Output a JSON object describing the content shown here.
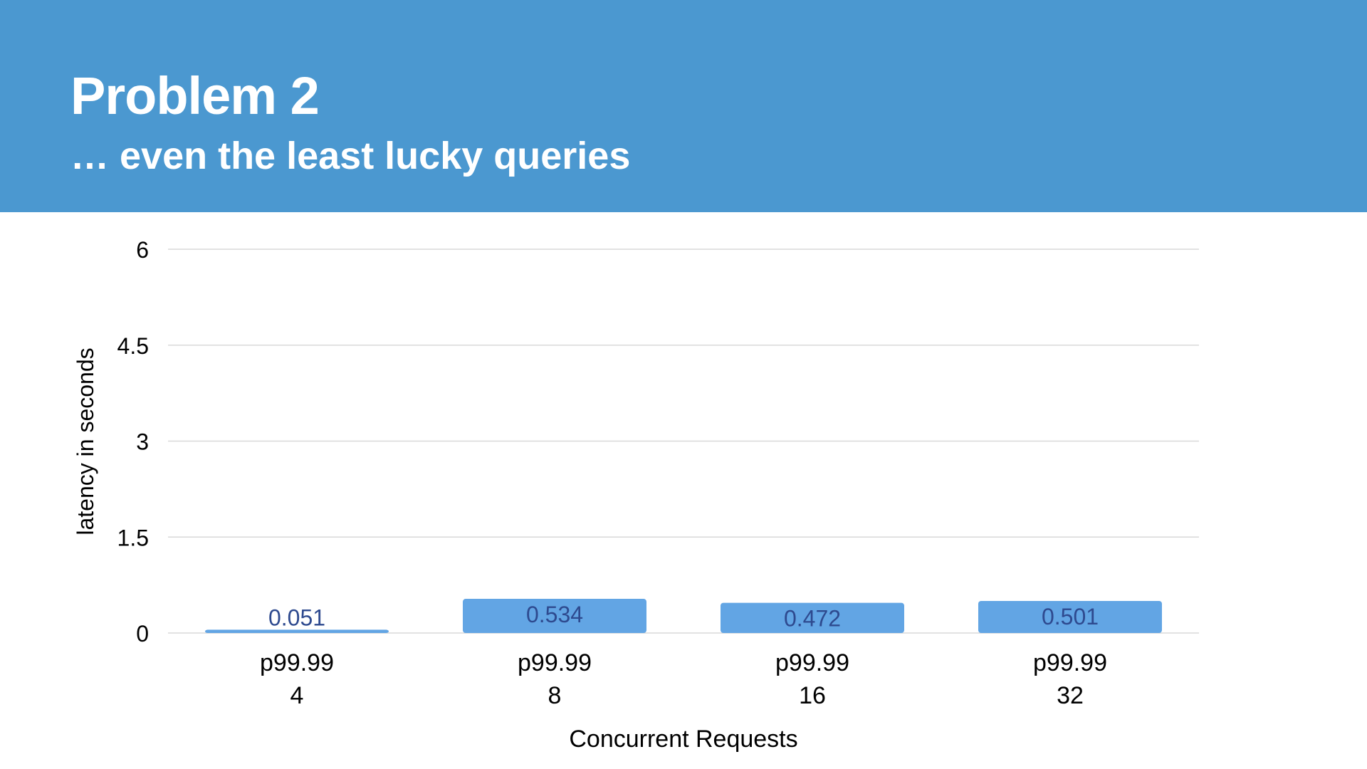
{
  "slide": {
    "title": "Problem 2",
    "subtitle": "… even the least lucky queries"
  },
  "colors": {
    "header_bg": "#4b98d0",
    "bar": "#62a5e4",
    "bar_label": "#2e4a8f",
    "grid": "#d9d9d9",
    "text": "#000000"
  },
  "chart_data": {
    "type": "bar",
    "categories": [
      [
        "p99.99",
        "4"
      ],
      [
        "p99.99",
        "8"
      ],
      [
        "p99.99",
        "16"
      ],
      [
        "p99.99",
        "32"
      ]
    ],
    "values": [
      0.051,
      0.534,
      0.472,
      0.501
    ],
    "value_labels": [
      "0.051",
      "0.534",
      "0.472",
      "0.501"
    ],
    "xlabel": "Concurrent Requests",
    "ylabel": "latency in seconds",
    "ylim": [
      0,
      6
    ],
    "yticks": [
      0,
      1.5,
      3,
      4.5,
      6
    ],
    "ytick_labels": [
      "0",
      "1.5",
      "3",
      "4.5",
      "6"
    ],
    "grid": true
  }
}
